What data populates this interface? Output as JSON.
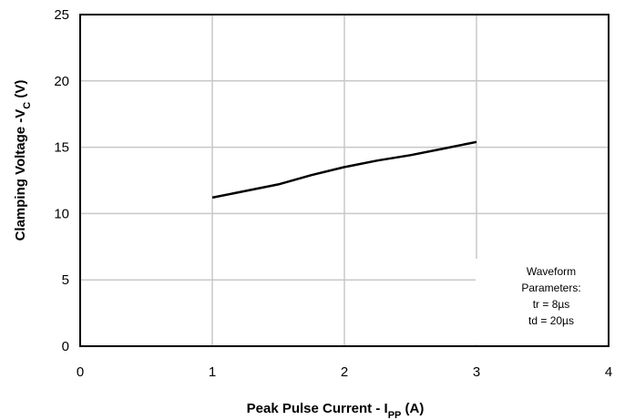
{
  "chart_data": {
    "type": "line",
    "title": "",
    "xlabel": "Peak Pulse Current - I",
    "xlabel_sub": "PP",
    "xlabel_suffix": " (A)",
    "ylabel": "Clamping Voltage -V",
    "ylabel_sub": "C",
    "ylabel_suffix": " (V)",
    "xlim": [
      0,
      4
    ],
    "ylim": [
      0,
      25
    ],
    "xticks": [
      0,
      1,
      2,
      3,
      4
    ],
    "yticks": [
      0,
      5,
      10,
      15,
      20,
      25
    ],
    "grid": true,
    "series": [
      {
        "color": "#000000",
        "x": [
          1.0,
          1.25,
          1.5,
          1.75,
          2.0,
          2.25,
          2.5,
          2.75,
          3.0
        ],
        "y": [
          11.2,
          11.7,
          12.2,
          12.9,
          13.5,
          14.0,
          14.4,
          14.9,
          15.4
        ]
      }
    ],
    "annotation": {
      "lines": [
        "Waveform",
        "Parameters:",
        "tr = 8µs",
        "td = 20µs"
      ]
    }
  }
}
